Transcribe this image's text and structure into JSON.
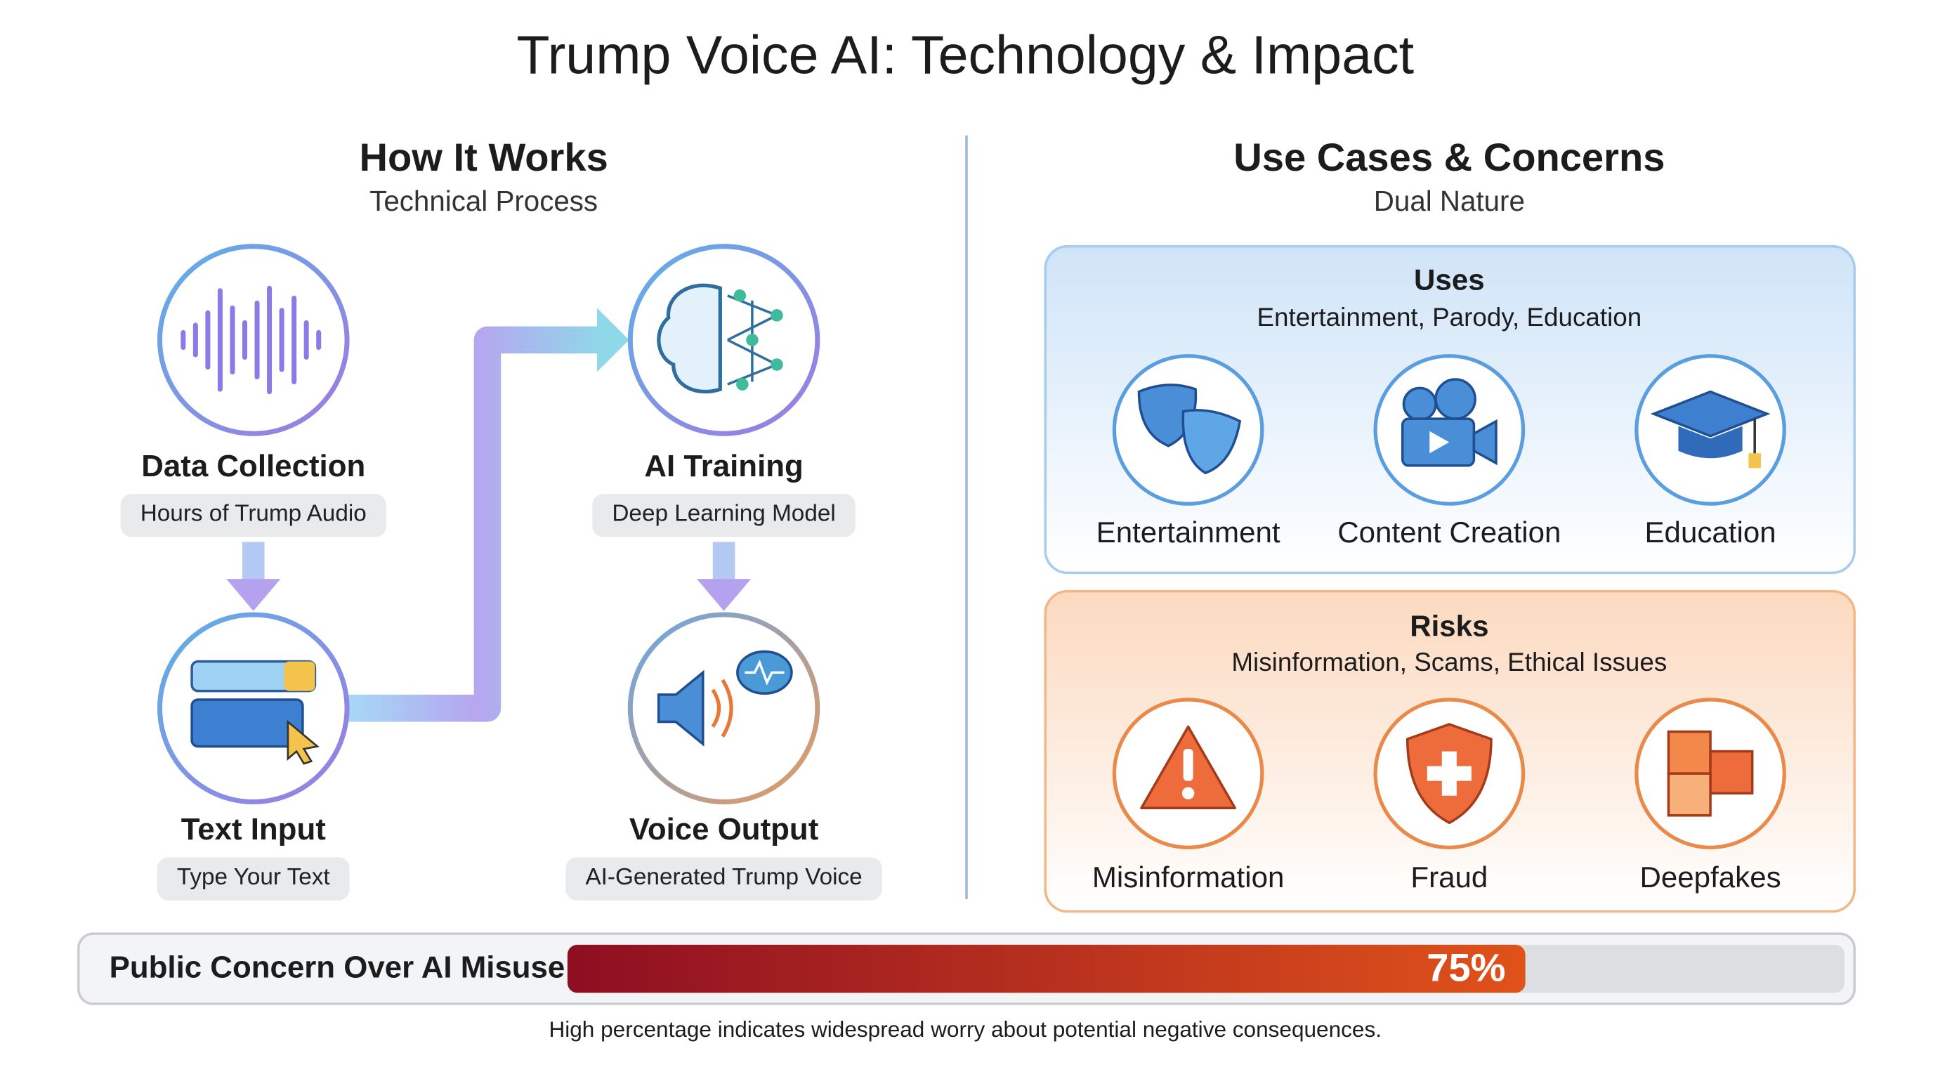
{
  "header": {
    "title": "Trump Voice AI: Technology & Impact"
  },
  "how_it_works": {
    "title": "How It Works",
    "subtitle": "Technical Process",
    "steps": [
      {
        "title": "Data Collection",
        "detail": "Hours of Trump Audio"
      },
      {
        "title": "AI Training",
        "detail": "Deep Learning Model"
      },
      {
        "title": "Text Input",
        "detail": "Type Your Text"
      },
      {
        "title": "Voice Output",
        "detail": "AI-Generated Trump Voice"
      }
    ]
  },
  "use_cases": {
    "title": "Use Cases & Concerns",
    "subtitle": "Dual Nature",
    "uses": {
      "title": "Uses",
      "subtitle": "Entertainment, Parody, Education",
      "items": [
        "Entertainment",
        "Content Creation",
        "Education"
      ]
    },
    "risks": {
      "title": "Risks",
      "subtitle": "Misinformation, Scams, Ethical Issues",
      "items": [
        "Misinformation",
        "Fraud",
        "Deepfakes"
      ]
    }
  },
  "concern": {
    "label": "Public Concern Over AI Misuse",
    "value": 75,
    "value_label": "75%",
    "xlim": [
      0,
      100
    ]
  },
  "footnote": "High percentage indicates widespread worry about potential negative consequences."
}
